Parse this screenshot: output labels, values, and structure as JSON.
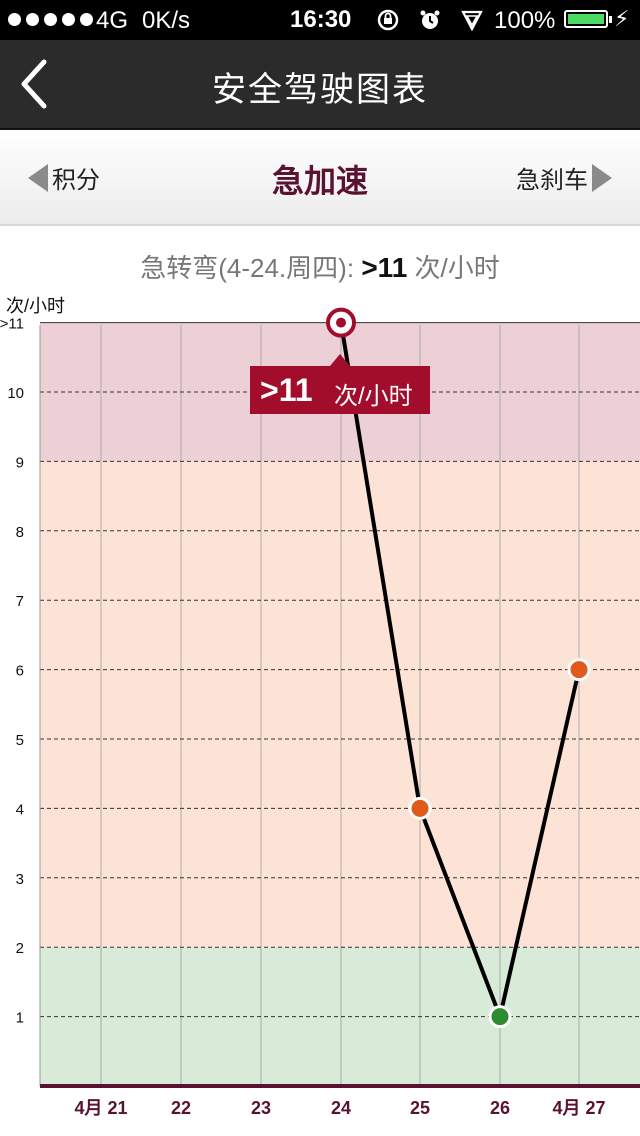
{
  "status_bar": {
    "network": "4G",
    "speed": "0K/s",
    "time": "16:30",
    "battery": "100%",
    "icons": [
      "rotation-lock-icon",
      "alarm-icon",
      "location-icon"
    ]
  },
  "nav": {
    "title": "安全驾驶图表",
    "back_icon": "chevron-left-icon"
  },
  "tabs": {
    "prev": "积分",
    "current": "急加速",
    "next": "急刹车"
  },
  "summary": {
    "prefix": "急转弯(4-24.周四):",
    "value": ">11",
    "unit": "次/小时"
  },
  "tooltip": {
    "value": ">11",
    "unit": "次/小时"
  },
  "colors": {
    "accent": "#a30d2c",
    "high_zone": "#ecd0d6",
    "mid_zone": "#fde3d5",
    "low_zone": "#d7ebd8",
    "point_orange": "#e05a1e",
    "point_green": "#2e8b2e",
    "axis": "#5a1230"
  },
  "chart_data": {
    "type": "line",
    "ylabel": "次/小时",
    "categories": [
      "4月 21",
      "22",
      "23",
      "24",
      "25",
      "26",
      "4月 27"
    ],
    "values": [
      null,
      null,
      null,
      11,
      4,
      1,
      6
    ],
    "y_ticks": [
      "1",
      "2",
      "3",
      "4",
      "5",
      "6",
      "7",
      "8",
      "9",
      "10",
      ">11"
    ],
    "ylim": [
      0,
      11
    ],
    "zones": [
      {
        "name": "low",
        "from": 0,
        "to": 2
      },
      {
        "name": "mid",
        "from": 2,
        "to": 9
      },
      {
        "name": "high",
        "from": 9,
        "to": 11
      }
    ],
    "selected_index": 3
  }
}
